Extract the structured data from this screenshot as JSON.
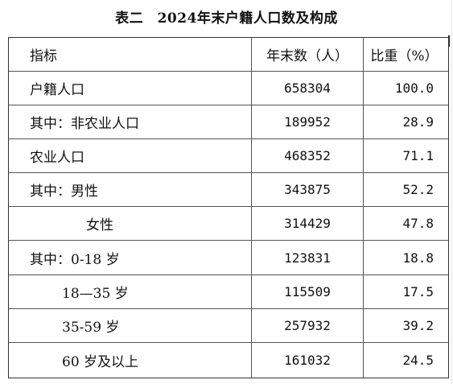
{
  "title": "表二　2024年末户籍人口数及构成",
  "header": {
    "indicator": "指标",
    "count": "年末数（人）",
    "ratio": "比重（%）"
  },
  "rows": [
    {
      "label": "户籍人口",
      "count": "658304",
      "ratio": "100.0"
    },
    {
      "label": "其中：非农业人口",
      "count": "189952",
      "ratio": "28.9"
    },
    {
      "label": "农业人口",
      "count": "468352",
      "ratio": "71.1"
    },
    {
      "label": "其中：男性",
      "count": "343875",
      "ratio": "52.2"
    },
    {
      "label": "女性",
      "count": "314429",
      "ratio": "47.8"
    },
    {
      "label": "其中：0-18 岁",
      "count": "123831",
      "ratio": "18.8"
    },
    {
      "label": "18—35 岁",
      "count": "115509",
      "ratio": "17.5"
    },
    {
      "label": "35-59 岁",
      "count": "257932",
      "ratio": "39.2"
    },
    {
      "label": "60 岁及以上",
      "count": "161032",
      "ratio": "24.5"
    }
  ]
}
